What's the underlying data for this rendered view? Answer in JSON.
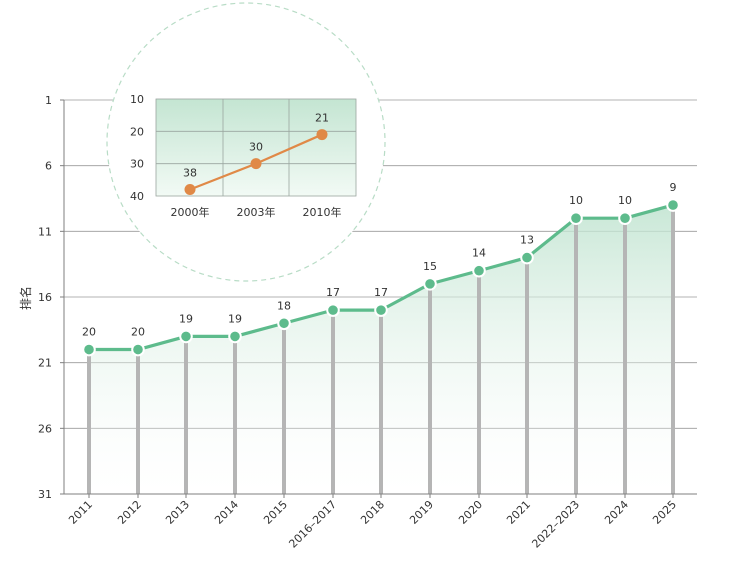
{
  "chart_data": [
    {
      "type": "area",
      "title": "",
      "xlabel": "",
      "ylabel": "排名",
      "y_reversed": true,
      "ylim": [
        1,
        31
      ],
      "yticks": [
        1,
        6,
        11,
        16,
        21,
        26,
        31
      ],
      "categories": [
        "2011",
        "2012",
        "2013",
        "2014",
        "2015",
        "2016–2017",
        "2018",
        "2019",
        "2020",
        "2021",
        "2022–2023",
        "2024",
        "2025"
      ],
      "values": [
        20,
        20,
        19,
        19,
        18,
        17,
        17,
        15,
        14,
        13,
        10,
        10,
        9
      ],
      "grid": "horizontal",
      "colors": {
        "line": "#5dbb8c",
        "fill": "#cfe9db",
        "stem": "#b5b5b5",
        "axis": "#7f7f7f"
      }
    },
    {
      "type": "line",
      "title": "",
      "xlabel": "",
      "ylabel": "",
      "y_reversed": true,
      "ylim": [
        10,
        40
      ],
      "yticks": [
        10,
        20,
        30,
        40
      ],
      "categories": [
        "2000年",
        "2003年",
        "2010年"
      ],
      "values": [
        38,
        30,
        21
      ],
      "grid": "both",
      "colors": {
        "line": "#e08947",
        "fill": "#d5ecdf",
        "frame": "#9aa59f"
      }
    }
  ]
}
